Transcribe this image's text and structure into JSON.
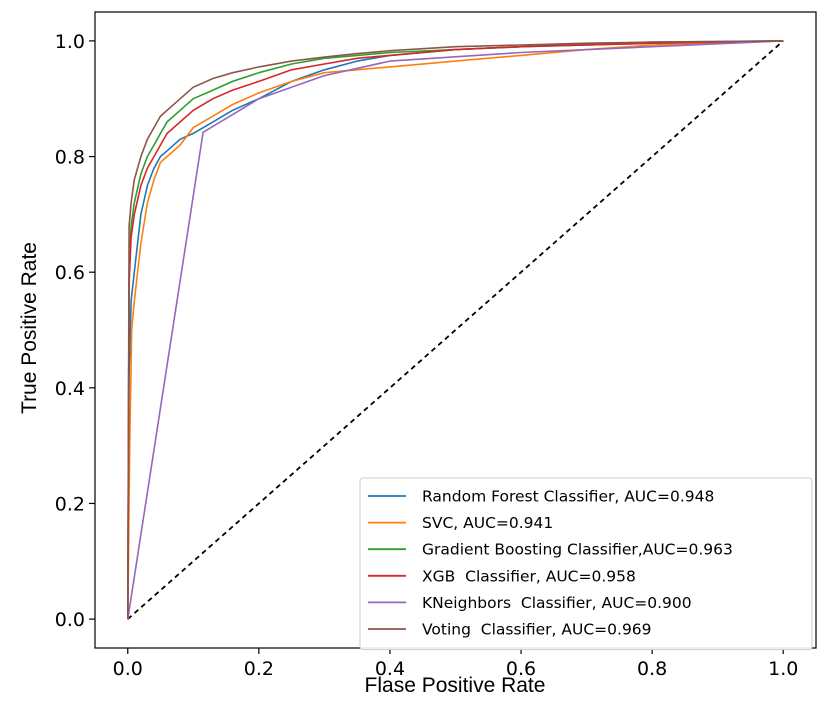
{
  "chart_data": {
    "type": "line",
    "title": "",
    "xlabel": "Flase Positive Rate",
    "ylabel": "True Positive Rate",
    "xlim": [
      -0.05,
      1.05
    ],
    "ylim": [
      -0.05,
      1.05
    ],
    "xticks": [
      "0.0",
      "0.2",
      "0.4",
      "0.6",
      "0.8",
      "1.0"
    ],
    "yticks": [
      "0.0",
      "0.2",
      "0.4",
      "0.6",
      "0.8",
      "1.0"
    ],
    "grid": false,
    "legend_position": "lower-right",
    "diagonal": {
      "style": "dashed",
      "color": "#000000",
      "x": [
        0,
        1
      ],
      "y": [
        0,
        1
      ]
    },
    "series": [
      {
        "name": "Random Forest Classifier, AUC=0.948",
        "color": "#1f77b4",
        "x": [
          0,
          0.002,
          0.005,
          0.01,
          0.015,
          0.02,
          0.03,
          0.04,
          0.05,
          0.06,
          0.08,
          0.1,
          0.13,
          0.16,
          0.2,
          0.25,
          0.3,
          0.35,
          0.4,
          0.5,
          0.6,
          0.7,
          0.8,
          0.9,
          1.0
        ],
        "y": [
          0,
          0.42,
          0.55,
          0.6,
          0.65,
          0.7,
          0.75,
          0.78,
          0.8,
          0.81,
          0.83,
          0.84,
          0.86,
          0.88,
          0.9,
          0.93,
          0.95,
          0.965,
          0.975,
          0.985,
          0.99,
          0.993,
          0.996,
          0.998,
          1.0
        ]
      },
      {
        "name": "SVC, AUC=0.941",
        "color": "#ff7f0e",
        "x": [
          0,
          0.003,
          0.006,
          0.01,
          0.015,
          0.02,
          0.03,
          0.04,
          0.05,
          0.06,
          0.08,
          0.1,
          0.13,
          0.16,
          0.2,
          0.25,
          0.3,
          0.4,
          0.5,
          0.6,
          0.7,
          0.8,
          0.9,
          1.0
        ],
        "y": [
          0,
          0.3,
          0.5,
          0.55,
          0.6,
          0.65,
          0.72,
          0.76,
          0.79,
          0.8,
          0.82,
          0.85,
          0.87,
          0.89,
          0.91,
          0.93,
          0.945,
          0.955,
          0.965,
          0.975,
          0.985,
          0.993,
          0.997,
          1.0
        ]
      },
      {
        "name": "Gradient Boosting Classifier,AUC=0.963",
        "color": "#2ca02c",
        "x": [
          0,
          0.002,
          0.005,
          0.01,
          0.02,
          0.03,
          0.04,
          0.05,
          0.06,
          0.08,
          0.1,
          0.13,
          0.16,
          0.2,
          0.25,
          0.3,
          0.35,
          0.4,
          0.5,
          0.6,
          0.7,
          0.8,
          0.9,
          1.0
        ],
        "y": [
          0,
          0.6,
          0.68,
          0.72,
          0.77,
          0.8,
          0.82,
          0.84,
          0.86,
          0.88,
          0.9,
          0.915,
          0.93,
          0.945,
          0.96,
          0.97,
          0.975,
          0.98,
          0.985,
          0.99,
          0.995,
          0.998,
          0.999,
          1.0
        ]
      },
      {
        "name": "XGB  Classifier, AUC=0.958",
        "color": "#d62728",
        "x": [
          0,
          0.002,
          0.005,
          0.01,
          0.02,
          0.03,
          0.04,
          0.05,
          0.06,
          0.08,
          0.1,
          0.13,
          0.16,
          0.2,
          0.25,
          0.3,
          0.35,
          0.4,
          0.5,
          0.6,
          0.7,
          0.8,
          0.9,
          1.0
        ],
        "y": [
          0,
          0.58,
          0.66,
          0.7,
          0.75,
          0.78,
          0.8,
          0.82,
          0.84,
          0.86,
          0.88,
          0.9,
          0.915,
          0.93,
          0.95,
          0.96,
          0.97,
          0.975,
          0.985,
          0.99,
          0.993,
          0.996,
          0.998,
          1.0
        ]
      },
      {
        "name": "KNeighbors  Classifier, AUC=0.900",
        "color": "#9467bd",
        "x": [
          0,
          0.115,
          0.2,
          0.3,
          0.4,
          0.6,
          0.8,
          1.0
        ],
        "y": [
          0,
          0.842,
          0.9,
          0.94,
          0.965,
          0.98,
          0.99,
          1.0
        ]
      },
      {
        "name": "Voting  Classifier, AUC=0.969",
        "color": "#8c564b",
        "x": [
          0,
          0.002,
          0.005,
          0.01,
          0.02,
          0.03,
          0.04,
          0.05,
          0.06,
          0.08,
          0.1,
          0.13,
          0.16,
          0.2,
          0.25,
          0.3,
          0.35,
          0.4,
          0.5,
          0.6,
          0.7,
          0.8,
          0.9,
          1.0
        ],
        "y": [
          0,
          0.68,
          0.72,
          0.76,
          0.8,
          0.83,
          0.85,
          0.87,
          0.88,
          0.9,
          0.92,
          0.935,
          0.945,
          0.955,
          0.965,
          0.972,
          0.978,
          0.983,
          0.99,
          0.993,
          0.996,
          0.998,
          0.999,
          1.0
        ]
      }
    ]
  }
}
